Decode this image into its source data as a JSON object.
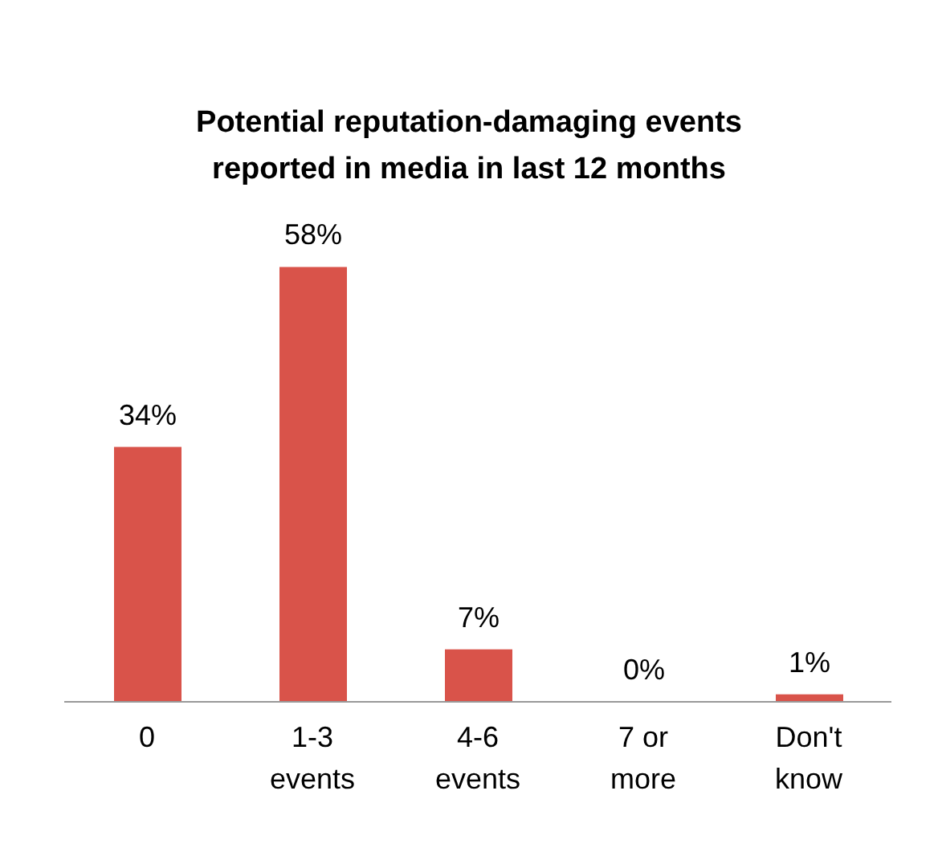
{
  "chart_data": {
    "type": "bar",
    "title": "Potential reputation-damaging events reported in media in last 12 months",
    "categories": [
      "0",
      "1-3 events",
      "4-6 events",
      "7 or more",
      "Don't know"
    ],
    "values": [
      34,
      58,
      7,
      0,
      1
    ],
    "value_labels": [
      "34%",
      "58%",
      "7%",
      "0%",
      "1%"
    ],
    "color": "#d9534a"
  }
}
